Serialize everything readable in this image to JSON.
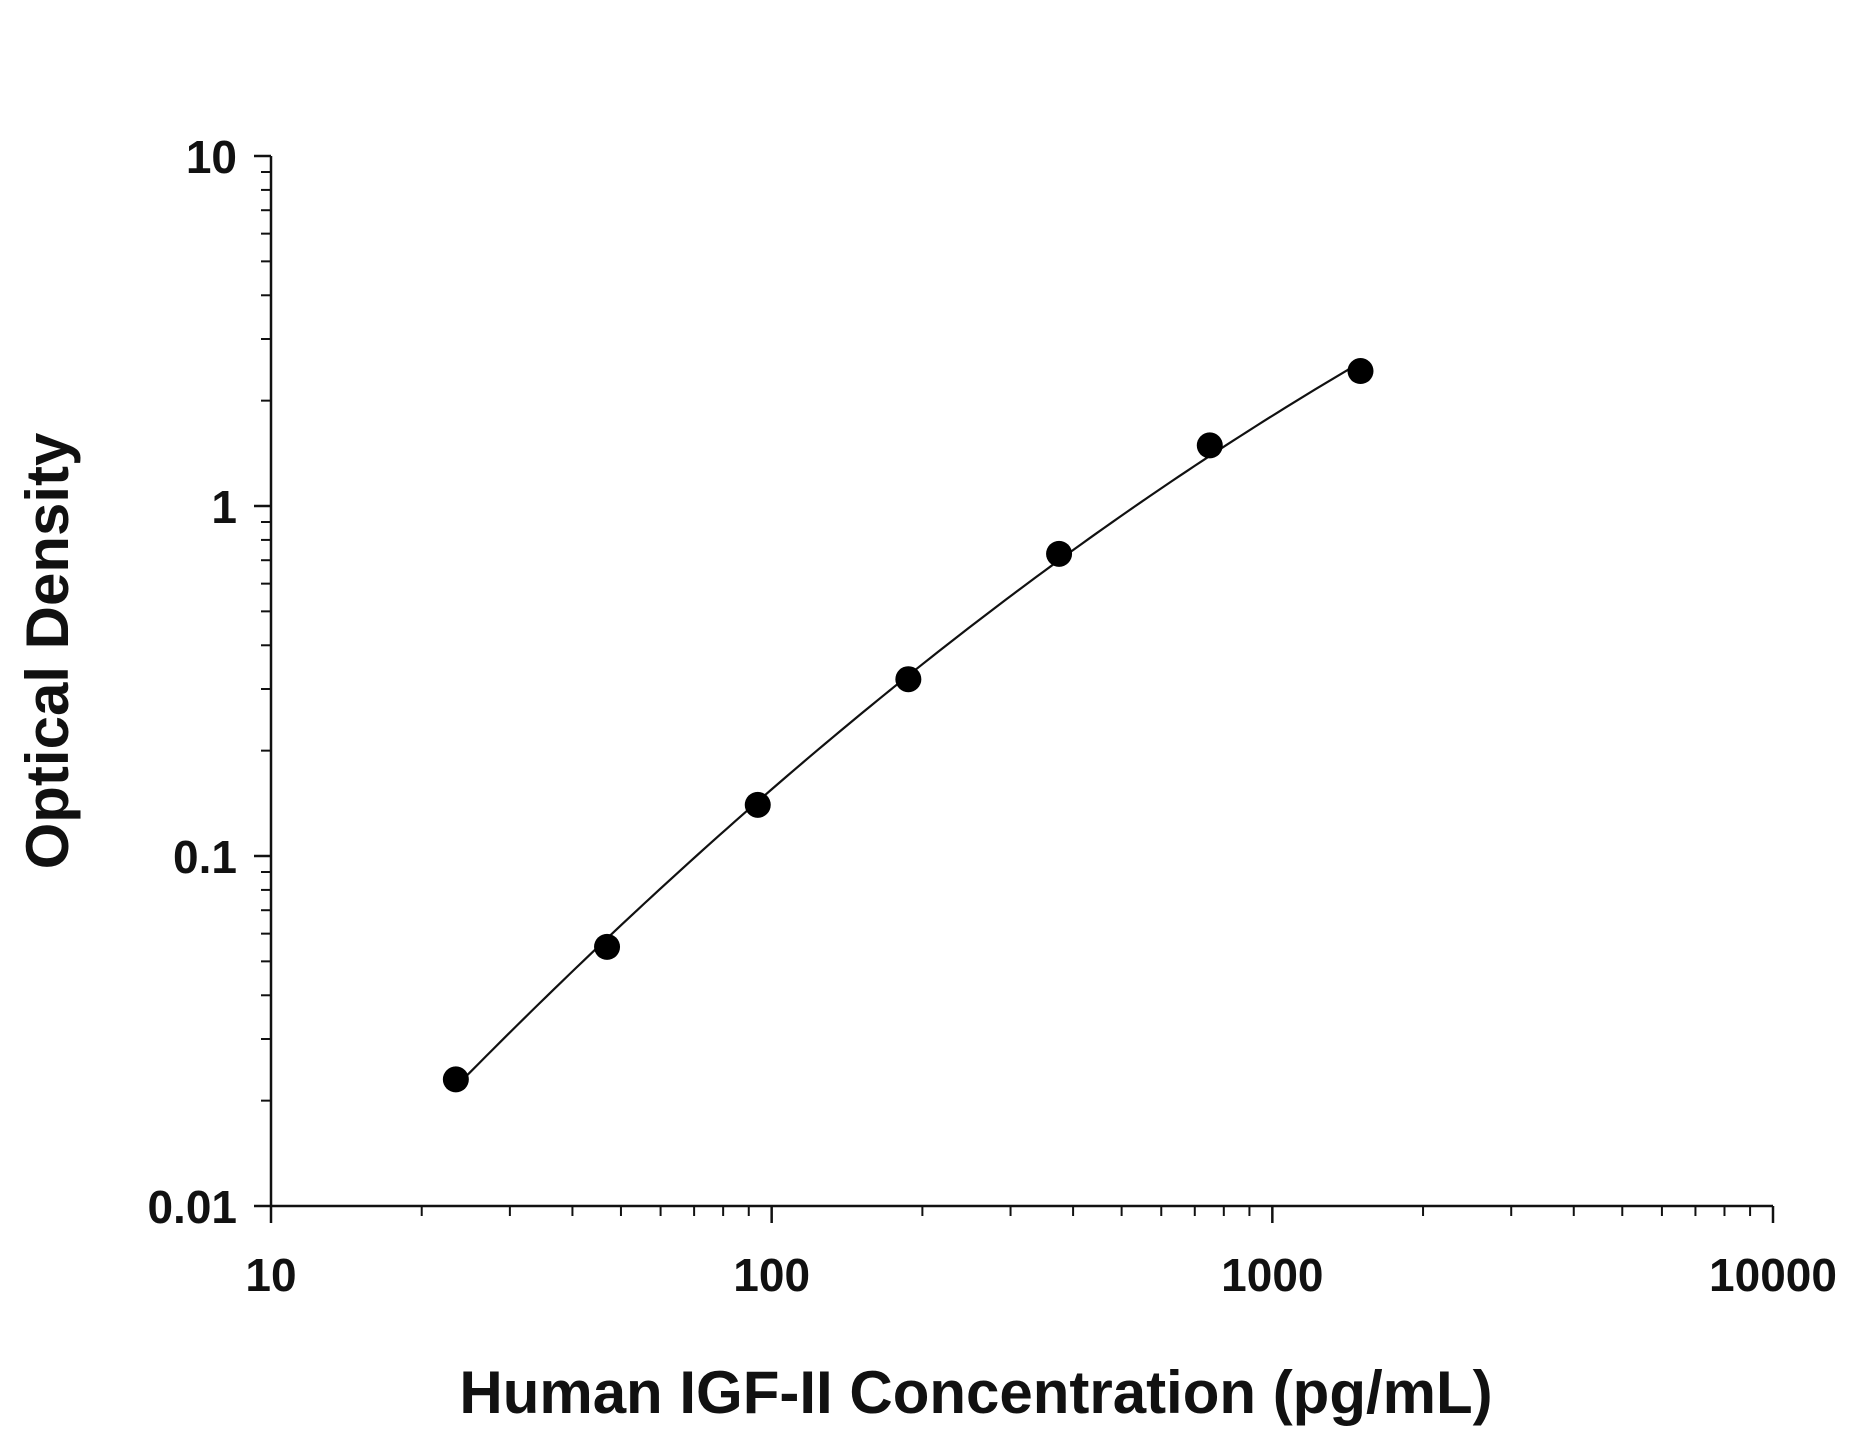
{
  "chart_data": {
    "type": "scatter",
    "title": "",
    "xlabel": "Human IGF-II Concentration (pg/mL)",
    "ylabel": "Optical Density",
    "xscale": "log",
    "yscale": "log",
    "xlim": [
      10,
      10000
    ],
    "ylim": [
      0.01,
      10
    ],
    "x_ticks": [
      "10",
      "100",
      "1000",
      "10000"
    ],
    "y_ticks": [
      "0.01",
      "0.1",
      "1",
      "10"
    ],
    "grid": false,
    "legend": "none",
    "series": [
      {
        "points": [
          {
            "x": 23.4,
            "y": 0.023
          },
          {
            "x": 46.9,
            "y": 0.055
          },
          {
            "x": 93.8,
            "y": 0.14
          },
          {
            "x": 187.5,
            "y": 0.32
          },
          {
            "x": 375,
            "y": 0.73
          },
          {
            "x": 750,
            "y": 1.49
          },
          {
            "x": 1500,
            "y": 2.43
          }
        ],
        "fit_curve": true,
        "fit_x_range": [
          23.4,
          1500
        ]
      }
    ],
    "colors": {
      "points": "#000000",
      "curve": "#111111",
      "axes": "#111111",
      "text": "#111111"
    }
  }
}
